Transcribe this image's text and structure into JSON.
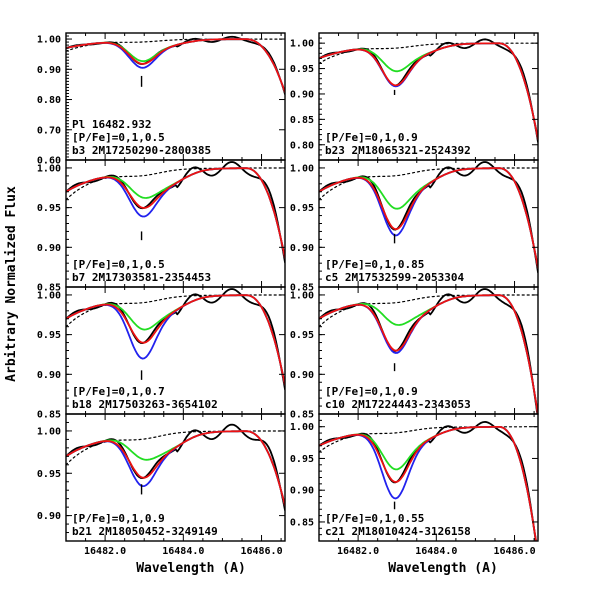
{
  "chart_data": {
    "type": "line",
    "xlabel": "Wavelength (A)",
    "ylabel": "Arbitrary Normalized Flux",
    "xlim": [
      16481.0,
      16486.6
    ],
    "x_ticks": [
      16482.0,
      16484.0,
      16486.0
    ],
    "x_tick_labels": [
      "16482.0",
      "16484.0",
      "16486.0"
    ],
    "feature_label": "Pl 16482.932",
    "line_center": 16482.932,
    "series_styles": [
      {
        "key": "observed",
        "color": "#000000",
        "dash": ""
      },
      {
        "key": "p0",
        "color": "#22dd22",
        "dash": ""
      },
      {
        "key": "p1",
        "color": "#2222ee",
        "dash": ""
      },
      {
        "key": "p2",
        "color": "#ee1111",
        "dash": ""
      },
      {
        "key": "nop",
        "color": "#000000",
        "dash": "2,3"
      }
    ],
    "panels": [
      {
        "col": 0,
        "row": 0,
        "ylim": [
          0.6,
          1.02
        ],
        "yticks": [
          "0.60",
          "0.70",
          "0.80",
          "0.90",
          "1.00"
        ],
        "pf": "[P/Fe]=0,1,0.5",
        "star": "b3  2M17250290-2800385",
        "label_y": 0.786,
        "marker_y": [
          0.842,
          0.878
        ],
        "depth": 0.058,
        "blue_depth": 0.08,
        "red_depth": 0.067,
        "edge_drop": 0.14
      },
      {
        "col": 0,
        "row": 1,
        "ylim": [
          0.85,
          1.01
        ],
        "yticks": [
          "0.85",
          "0.90",
          "0.95",
          "1.00"
        ],
        "pf": "[P/Fe]=0,1,0.5",
        "star": "b7  2M17303581-2354453",
        "label_y": 0.874,
        "marker_y": [
          0.909,
          0.92
        ],
        "depth": 0.022,
        "blue_depth": 0.046,
        "red_depth": 0.035,
        "edge_drop": 0.09
      },
      {
        "col": 0,
        "row": 2,
        "ylim": [
          0.85,
          1.01
        ],
        "yticks": [
          "0.85",
          "0.90",
          "0.95",
          "1.00"
        ],
        "pf": "[P/Fe]=0,1,0.7",
        "star": "b18 2M17503263-3654102",
        "label_y": 0.872,
        "marker_y": [
          0.893,
          0.905
        ],
        "depth": 0.028,
        "blue_depth": 0.065,
        "red_depth": 0.045,
        "edge_drop": 0.09
      },
      {
        "col": 0,
        "row": 3,
        "ylim": [
          0.87,
          1.02
        ],
        "yticks": [
          "0.90",
          "0.95",
          "1.00"
        ],
        "pf": "[P/Fe]=0,1,0.9",
        "star": "b21 2M18050452-3249149",
        "label_y": 0.918,
        "marker_y": [
          0.925,
          0.937
        ],
        "depth": 0.018,
        "blue_depth": 0.05,
        "red_depth": 0.04,
        "edge_drop": 0.07
      },
      {
        "col": 1,
        "row": 0,
        "ylim": [
          0.77,
          1.02
        ],
        "yticks": [
          "0.80",
          "0.85",
          "0.90",
          "0.95",
          "1.00"
        ],
        "pf": "[P/Fe]=0,1,0.9",
        "star": "b23 2M18065321-2524392",
        "label_y": 0.822,
        "marker_y": [
          0.898,
          0.908
        ],
        "depth": 0.04,
        "blue_depth": 0.07,
        "red_depth": 0.068,
        "edge_drop": 0.15
      },
      {
        "col": 1,
        "row": 1,
        "ylim": [
          0.85,
          1.01
        ],
        "yticks": [
          "0.85",
          "0.90",
          "0.95",
          "1.00"
        ],
        "pf": "[P/Fe]=0,1,0.85",
        "star": "c5  2M17532599-2053304",
        "label_y": 0.875,
        "marker_y": [
          0.905,
          0.917
        ],
        "depth": 0.036,
        "blue_depth": 0.07,
        "red_depth": 0.062,
        "edge_drop": 0.1
      },
      {
        "col": 1,
        "row": 2,
        "ylim": [
          0.85,
          1.01
        ],
        "yticks": [
          "0.85",
          "0.90",
          "0.95",
          "1.00"
        ],
        "pf": "[P/Fe]=0,1,0.9",
        "star": "c10 2M17224443-2343053",
        "label_y": 0.872,
        "marker_y": [
          0.904,
          0.914
        ],
        "depth": 0.022,
        "blue_depth": 0.058,
        "red_depth": 0.055,
        "edge_drop": 0.12
      },
      {
        "col": 1,
        "row": 3,
        "ylim": [
          0.82,
          1.02
        ],
        "yticks": [
          "0.85",
          "0.90",
          "0.95",
          "1.00"
        ],
        "pf": "[P/Fe]=0,1,0.55",
        "star": "c21 2M18010424-3126158",
        "label_y": 0.842,
        "marker_y": [
          0.87,
          0.882
        ],
        "depth": 0.052,
        "blue_depth": 0.098,
        "red_depth": 0.072,
        "edge_drop": 0.16
      }
    ]
  }
}
